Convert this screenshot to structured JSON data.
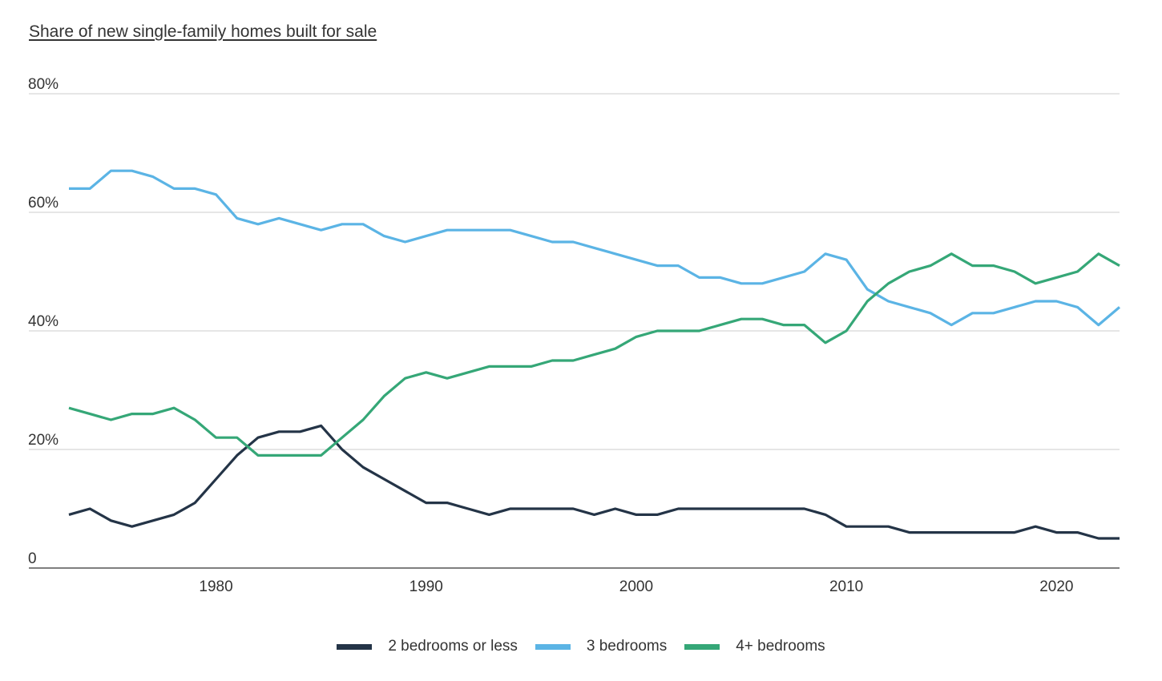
{
  "chart_data": {
    "type": "line",
    "title": "Share of new single-family homes built for sale",
    "xlabel": "",
    "ylabel": "",
    "xlim": [
      1973,
      2023
    ],
    "ylim": [
      0,
      80
    ],
    "x_ticks": [
      1980,
      1990,
      2000,
      2010,
      2020
    ],
    "y_ticks": [
      0,
      20,
      40,
      60,
      80
    ],
    "y_tick_labels": [
      "0",
      "20%",
      "40%",
      "60%",
      "80%"
    ],
    "grid": "horizontal",
    "legend_position": "bottom-center",
    "x": [
      1973,
      1974,
      1975,
      1976,
      1977,
      1978,
      1979,
      1980,
      1981,
      1982,
      1983,
      1984,
      1985,
      1986,
      1987,
      1988,
      1989,
      1990,
      1991,
      1992,
      1993,
      1994,
      1995,
      1996,
      1997,
      1998,
      1999,
      2000,
      2001,
      2002,
      2003,
      2004,
      2005,
      2006,
      2007,
      2008,
      2009,
      2010,
      2011,
      2012,
      2013,
      2014,
      2015,
      2016,
      2017,
      2018,
      2019,
      2020,
      2021,
      2022,
      2023
    ],
    "series": [
      {
        "name": "2 bedrooms or less",
        "color": "#243447",
        "values": [
          9,
          10,
          8,
          7,
          8,
          9,
          11,
          15,
          19,
          22,
          23,
          23,
          24,
          20,
          17,
          15,
          13,
          11,
          11,
          10,
          9,
          10,
          10,
          10,
          10,
          9,
          10,
          9,
          9,
          10,
          10,
          10,
          10,
          10,
          10,
          10,
          9,
          7,
          7,
          7,
          6,
          6,
          6,
          6,
          6,
          6,
          7,
          6,
          6,
          5,
          5
        ]
      },
      {
        "name": "3 bedrooms",
        "color": "#5bb4e5",
        "values": [
          64,
          64,
          67,
          67,
          66,
          64,
          64,
          63,
          59,
          58,
          59,
          58,
          57,
          58,
          58,
          56,
          55,
          56,
          57,
          57,
          57,
          57,
          56,
          55,
          55,
          54,
          53,
          52,
          51,
          51,
          49,
          49,
          48,
          48,
          49,
          50,
          53,
          52,
          47,
          45,
          44,
          43,
          41,
          43,
          43,
          44,
          45,
          45,
          44,
          41,
          44
        ]
      },
      {
        "name": "4+ bedrooms",
        "color": "#35a777",
        "values": [
          27,
          26,
          25,
          26,
          26,
          27,
          25,
          22,
          22,
          19,
          19,
          19,
          19,
          22,
          25,
          29,
          32,
          33,
          32,
          33,
          34,
          34,
          34,
          35,
          35,
          36,
          37,
          39,
          40,
          40,
          40,
          41,
          42,
          42,
          41,
          41,
          38,
          40,
          45,
          48,
          50,
          51,
          53,
          51,
          51,
          50,
          48,
          49,
          50,
          53,
          51
        ]
      }
    ]
  }
}
